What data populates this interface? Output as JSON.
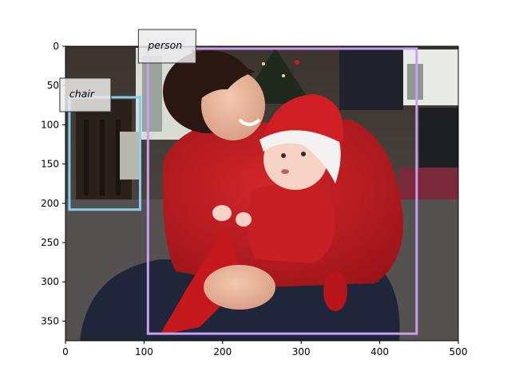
{
  "figure": {
    "image_extent": {
      "x": [
        0,
        500
      ],
      "y": [
        0,
        375
      ]
    },
    "x_ticks": [
      0,
      100,
      200,
      300,
      400,
      500
    ],
    "y_ticks": [
      0,
      50,
      100,
      150,
      200,
      250,
      300,
      350
    ],
    "scene_description_hidden": true
  },
  "detections": [
    {
      "label": "person",
      "color": "#c9a0f0",
      "bbox_data": [
        105,
        3,
        447,
        366
      ]
    },
    {
      "label": "chair",
      "color": "#87ceeb",
      "bbox_data": [
        5,
        65,
        95,
        208
      ]
    }
  ]
}
